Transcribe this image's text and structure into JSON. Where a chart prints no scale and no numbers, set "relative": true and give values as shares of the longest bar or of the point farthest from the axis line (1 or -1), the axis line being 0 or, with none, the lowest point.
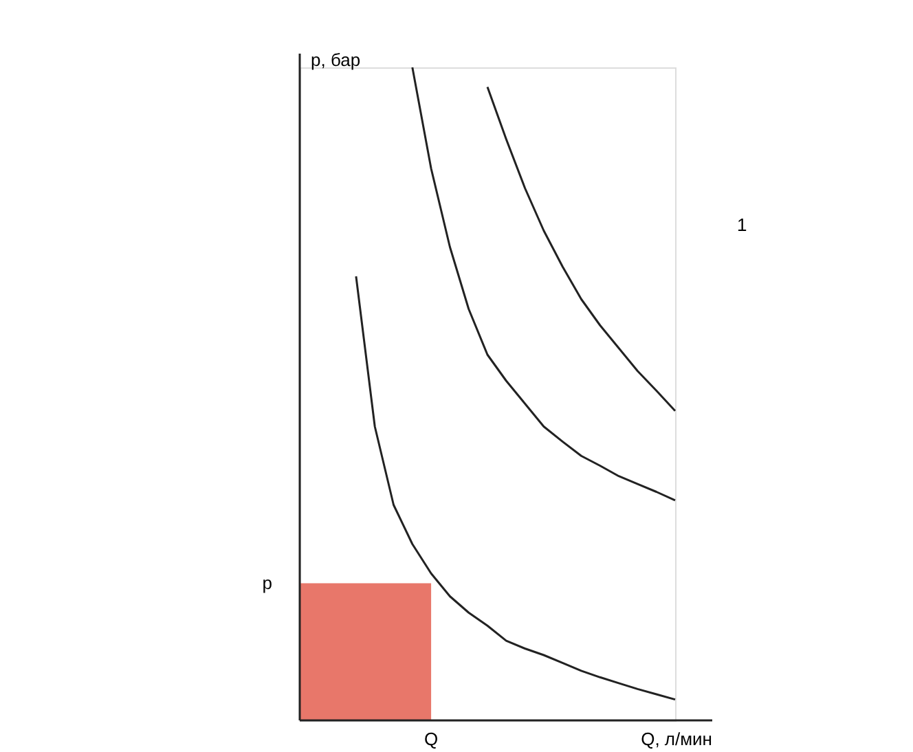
{
  "chart_data": {
    "type": "line",
    "relative": true,
    "xlabel": "Q, л/мин",
    "ylabel": "p, бар",
    "grid": false,
    "legend": false,
    "marker": "none",
    "line_style": "solid",
    "categories": [
      null,
      null,
      null,
      null,
      null,
      null,
      null,
      null,
      null,
      null,
      null,
      null,
      null,
      null,
      null,
      null,
      null,
      null,
      null,
      null,
      null
    ],
    "annotations": [
      "p",
      "Q",
      "1"
    ],
    "series": [
      {
        "type": "area",
        "color": "#e8776a",
        "values": [
          0.21,
          0.21,
          0.21,
          0.21,
          0.21,
          0.21,
          0.21,
          0.21,
          null,
          null,
          null,
          null,
          null,
          null,
          null,
          null,
          null,
          null,
          null,
          null,
          null
        ]
      },
      {
        "color": "#222222",
        "values": [
          null,
          null,
          null,
          0.68,
          0.45,
          0.33,
          0.27,
          0.225,
          0.19,
          0.165,
          0.145,
          0.122,
          0.11,
          0.1,
          0.088,
          0.076,
          0.066,
          0.057,
          0.048,
          0.04,
          0.032
        ]
      },
      {
        "color": "#222222",
        "values": [
          null,
          null,
          null,
          null,
          null,
          null,
          1,
          0.845,
          0.725,
          0.63,
          0.56,
          0.52,
          0.485,
          0.45,
          0.427,
          0.405,
          0.39,
          0.374,
          0.362,
          0.35,
          0.337
        ]
      },
      {
        "color": "#222222",
        "values": [
          null,
          null,
          null,
          null,
          null,
          null,
          null,
          null,
          null,
          null,
          0.97,
          0.89,
          0.815,
          0.75,
          0.695,
          0.645,
          0.605,
          0.57,
          0.535,
          0.505,
          0.474
        ]
      }
    ]
  }
}
